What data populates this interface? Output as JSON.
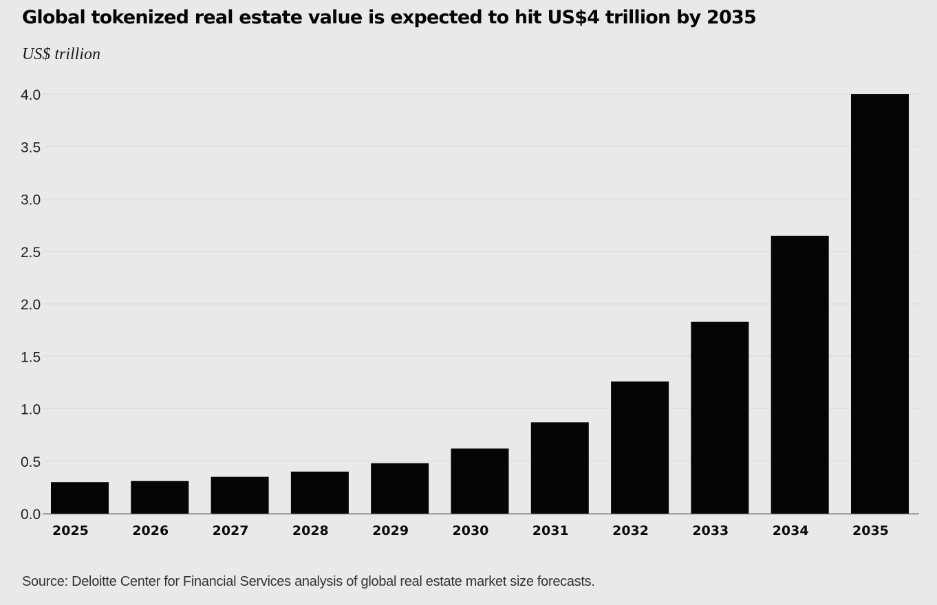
{
  "chart_data": {
    "type": "bar",
    "title": "Global tokenized real estate value is expected to hit US$4 trillion by 2035",
    "subtitle": "US$ trillion",
    "xlabel": "",
    "ylabel": "",
    "categories": [
      "2025",
      "2026",
      "2027",
      "2028",
      "2029",
      "2030",
      "2031",
      "2032",
      "2033",
      "2034",
      "2035"
    ],
    "values": [
      0.3,
      0.31,
      0.35,
      0.4,
      0.48,
      0.62,
      0.87,
      1.26,
      1.83,
      2.65,
      4.0
    ],
    "ylim": [
      0,
      4.0
    ],
    "yticks": [
      "0.0",
      "0.5",
      "1.0",
      "1.5",
      "2.0",
      "2.5",
      "3.0",
      "3.5",
      "4.0"
    ],
    "grid": true,
    "legend": "none",
    "bar_color": "#050505",
    "source": "Source: Deloitte Center for Financial Services analysis of global real estate market size forecasts."
  }
}
